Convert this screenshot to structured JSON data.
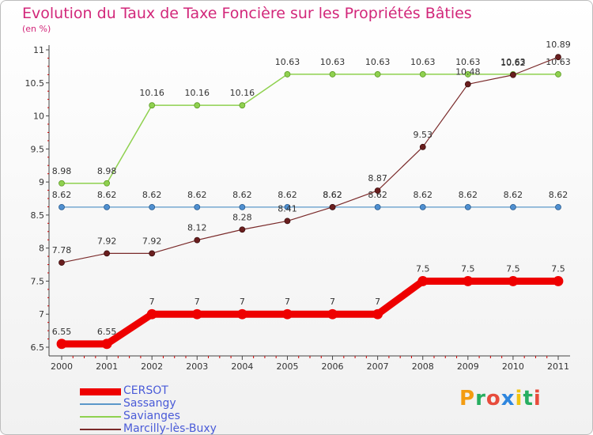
{
  "title": "Evolution du Taux de Taxe Foncière sur les Propriétés Bâties",
  "unit_label": "(en %)",
  "logo_text": "Proxiti",
  "logo_colors": [
    "#f39c12",
    "#27ae60",
    "#e74c3c",
    "#2e86de",
    "#f1c40f",
    "#27ae60",
    "#e74c3c"
  ],
  "chart_data": {
    "type": "line",
    "title": "Evolution du Taux de Taxe Foncière sur les Propriétés Bâties",
    "ylabel": "(en %)",
    "xlabel": "",
    "x": [
      "2000",
      "2001",
      "2002",
      "2003",
      "2004",
      "2005",
      "2006",
      "2007",
      "2008",
      "2009",
      "2010",
      "2011"
    ],
    "ylim": [
      6.5,
      11
    ],
    "yticks": [
      "6.5",
      "7",
      "7.5",
      "8",
      "8.5",
      "9",
      "9.5",
      "10",
      "10.5",
      "11"
    ],
    "legend_position": "bottom-left",
    "series": [
      {
        "name": "CERSOT",
        "color": "#ee0000",
        "values": [
          6.55,
          6.55,
          7,
          7,
          7,
          7,
          7,
          7,
          7.5,
          7.5,
          7.5,
          7.5
        ],
        "labels": [
          "6.55",
          "6.55",
          "7",
          "7",
          "7",
          "7",
          "7",
          "7",
          "7.5",
          "7.5",
          "7.5",
          "7.5"
        ]
      },
      {
        "name": "Sassangy",
        "color": "#5b97c9",
        "values": [
          8.62,
          8.62,
          8.62,
          8.62,
          8.62,
          8.62,
          8.62,
          8.62,
          8.62,
          8.62,
          8.62,
          8.62
        ],
        "labels": [
          "8.62",
          "8.62",
          "8.62",
          "8.62",
          "8.62",
          "8.62",
          "8.62",
          "8.62",
          "8.62",
          "8.62",
          "8.62",
          "8.62"
        ]
      },
      {
        "name": "Savianges",
        "color": "#8fd14f",
        "values": [
          8.98,
          8.98,
          10.16,
          10.16,
          10.16,
          10.63,
          10.63,
          10.63,
          10.63,
          10.63,
          10.63,
          10.63
        ],
        "labels": [
          "8.98",
          "8.98",
          "10.16",
          "10.16",
          "10.16",
          "10.63",
          "10.63",
          "10.63",
          "10.63",
          "10.63",
          "10.63",
          "10.63"
        ]
      },
      {
        "name": "Marcilly-lès-Buxy",
        "color": "#7a2a2a",
        "values": [
          7.78,
          7.92,
          7.92,
          8.12,
          8.28,
          8.41,
          8.62,
          8.87,
          9.53,
          10.48,
          10.62,
          10.89
        ],
        "labels": [
          "7.78",
          "7.92",
          "7.92",
          "8.12",
          "8.28",
          "8.41",
          "8.62",
          "8.87",
          "9.53",
          "10.48",
          "10.62",
          "10.89"
        ]
      }
    ]
  }
}
